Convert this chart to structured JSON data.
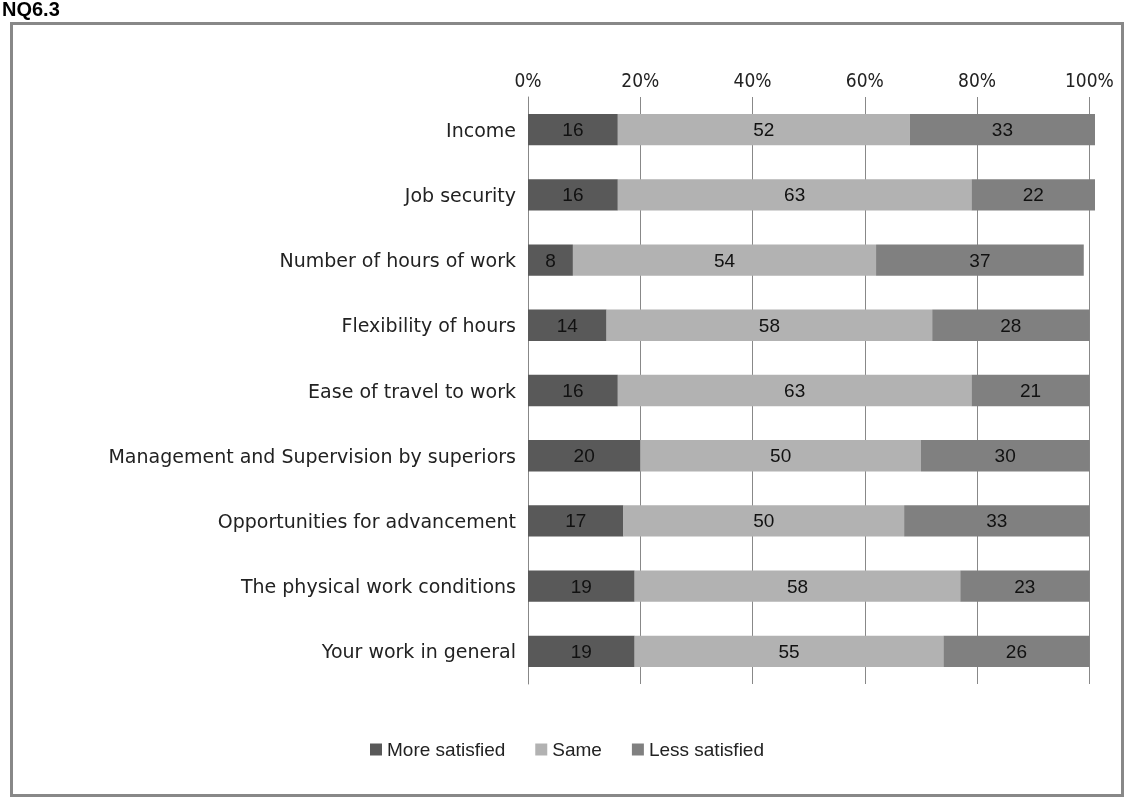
{
  "chart_data": {
    "type": "bar",
    "title": "NQ6.3",
    "orientation": "horizontal",
    "stacked": true,
    "categories": [
      "Income",
      "Job security",
      "Number of hours of work",
      "Flexibility of hours",
      "Ease of travel to work",
      "Management and Supervision by superiors",
      "Opportunities for advancement",
      "The physical work conditions",
      "Your work in general"
    ],
    "series": [
      {
        "name": "More satisfied",
        "color": "#595959",
        "values": [
          16,
          16,
          8,
          14,
          16,
          20,
          17,
          19,
          19
        ]
      },
      {
        "name": "Same",
        "color": "#b2b2b2",
        "values": [
          52,
          63,
          54,
          58,
          63,
          50,
          50,
          58,
          55
        ]
      },
      {
        "name": "Less satisfied",
        "color": "#808080",
        "values": [
          33,
          22,
          37,
          28,
          21,
          30,
          33,
          23,
          26
        ]
      }
    ],
    "xlim": [
      0,
      101
    ],
    "xticks": [
      {
        "value": 0,
        "label": "0%"
      },
      {
        "value": 20,
        "label": "20%"
      },
      {
        "value": 40,
        "label": "40%"
      },
      {
        "value": 60,
        "label": "60%"
      },
      {
        "value": 80,
        "label": "80%"
      },
      {
        "value": 100,
        "label": "100%"
      }
    ],
    "grid": "x",
    "legend": "bottom",
    "data_labels": true
  }
}
